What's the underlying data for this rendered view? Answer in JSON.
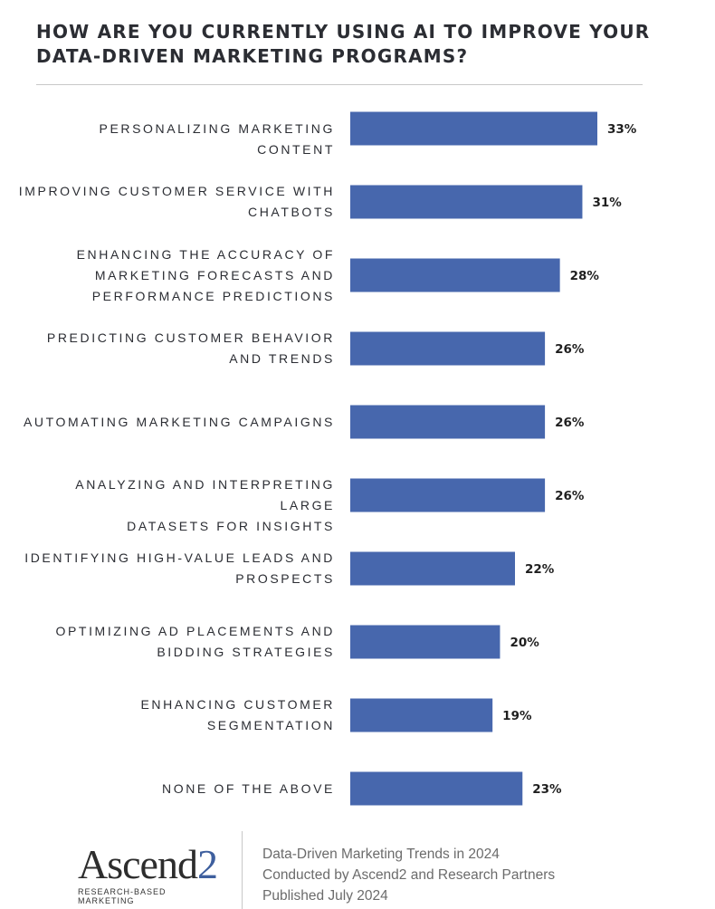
{
  "chart_data": {
    "type": "bar",
    "orientation": "horizontal",
    "title": "HOW ARE YOU CURRENTLY USING AI TO IMPROVE YOUR DATA-DRIVEN MARKETING PROGRAMS?",
    "categories": [
      [
        "PERSONALIZING MARKETING CONTENT"
      ],
      [
        "IMPROVING CUSTOMER SERVICE WITH",
        "CHATBOTS"
      ],
      [
        "ENHANCING THE ACCURACY OF",
        "MARKETING FORECASTS AND",
        "PERFORMANCE PREDICTIONS"
      ],
      [
        "PREDICTING CUSTOMER BEHAVIOR",
        "AND TRENDS"
      ],
      [
        "AUTOMATING MARKETING CAMPAIGNS"
      ],
      [
        "ANALYZING AND INTERPRETING LARGE",
        "DATASETS FOR INSIGHTS"
      ],
      [
        "IDENTIFYING HIGH-VALUE LEADS AND",
        "PROSPECTS"
      ],
      [
        "OPTIMIZING AD PLACEMENTS AND",
        "BIDDING STRATEGIES"
      ],
      [
        "ENHANCING CUSTOMER",
        "SEGMENTATION"
      ],
      [
        "NONE OF THE ABOVE"
      ]
    ],
    "values": [
      33,
      31,
      28,
      26,
      26,
      26,
      22,
      20,
      19,
      23
    ],
    "data_labels": [
      "33%",
      "31%",
      "28%",
      "26%",
      "26%",
      "26%",
      "22%",
      "20%",
      "19%",
      "23%"
    ],
    "xlim": [
      0,
      33
    ],
    "bar_color": "#4767ad",
    "grid": false,
    "legend": "none"
  },
  "footer": {
    "logo_text": "Ascend",
    "logo_digit": "2",
    "logo_tagline": "RESEARCH-BASED MARKETING",
    "credit_lines": [
      "Data-Driven Marketing Trends in 2024",
      "Conducted by Ascend2 and Research Partners",
      "Published July 2024"
    ]
  }
}
